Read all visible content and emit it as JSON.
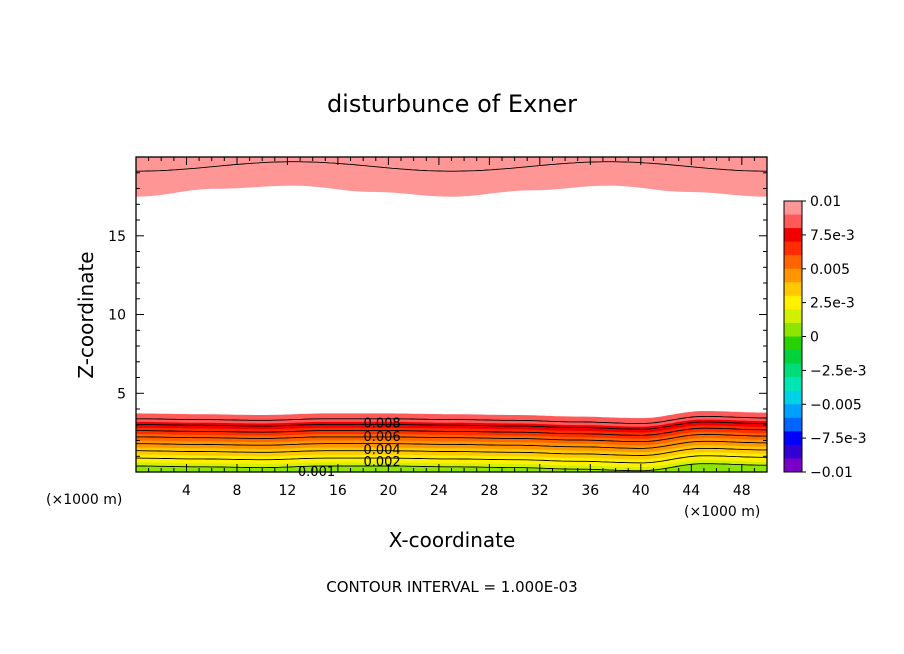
{
  "chart_data": {
    "type": "contour",
    "title": "disturbunce of Exner",
    "xlabel": "X-coordinate",
    "ylabel": "Z-coordinate",
    "x_unit_label": "(×1000 m)",
    "xlim": [
      0,
      50
    ],
    "ylim": [
      0,
      20
    ],
    "x_ticks": [
      {
        "value": 4,
        "label": "4"
      },
      {
        "value": 8,
        "label": "8"
      },
      {
        "value": 12,
        "label": "12"
      },
      {
        "value": 16,
        "label": "16"
      },
      {
        "value": 20,
        "label": "20"
      },
      {
        "value": 24,
        "label": "24"
      },
      {
        "value": 28,
        "label": "28"
      },
      {
        "value": 32,
        "label": "32"
      },
      {
        "value": 36,
        "label": "36"
      },
      {
        "value": 40,
        "label": "40"
      },
      {
        "value": 44,
        "label": "44"
      },
      {
        "value": 48,
        "label": "48"
      }
    ],
    "y_ticks": [
      {
        "value": 5,
        "label": "5"
      },
      {
        "value": 10,
        "label": "10"
      },
      {
        "value": 15,
        "label": "15"
      }
    ],
    "colorbar": {
      "min": -0.01,
      "max": 0.01,
      "colors": [
        "#7a00c8",
        "#3200d2",
        "#0000ff",
        "#0064ff",
        "#00a0ff",
        "#00d2e6",
        "#00e6b4",
        "#00dc78",
        "#00d23c",
        "#28d200",
        "#8ce600",
        "#d2f000",
        "#fff000",
        "#ffc800",
        "#ff9600",
        "#ff6400",
        "#ff2d00",
        "#f00000",
        "#ff5a5a",
        "#ff9696"
      ],
      "tick_labels": [
        {
          "value": 0.01,
          "label": "0.01"
        },
        {
          "value": 0.0075,
          "label": "7.5e-3"
        },
        {
          "value": 0.005,
          "label": "0.005"
        },
        {
          "value": 0.0025,
          "label": "2.5e-3"
        },
        {
          "value": 0,
          "label": "0"
        },
        {
          "value": -0.0025,
          "label": "−2.5e-3"
        },
        {
          "value": -0.005,
          "label": "−0.005"
        },
        {
          "value": -0.0075,
          "label": "−7.5e-3"
        },
        {
          "value": -0.01,
          "label": "−0.01"
        }
      ]
    },
    "contour_labels": [
      {
        "text": "0.008",
        "x": 19.5,
        "z": 3.15
      },
      {
        "text": "0.006",
        "x": 19.5,
        "z": 2.3
      },
      {
        "text": "0.004",
        "x": 19.5,
        "z": 1.45
      },
      {
        "text": "0.002",
        "x": 19.5,
        "z": 0.7
      },
      {
        "text": "0.001",
        "x": 14.3,
        "z": 0.05
      }
    ],
    "contour_interval_text": "CONTOUR INTERVAL = 1.000E-03",
    "bottom_layer": {
      "control_x": [
        0,
        5,
        10,
        15,
        20,
        25,
        30,
        35,
        40,
        45,
        50
      ],
      "offset_z": [
        0.0,
        -0.05,
        -0.1,
        0.0,
        0.0,
        -0.05,
        -0.1,
        -0.2,
        -0.3,
        0.15,
        0.05
      ],
      "levels": [
        {
          "value": 0.0005,
          "z": 0.12
        },
        {
          "value": 0.001,
          "z": 0.38
        },
        {
          "value": 0.0015,
          "z": 0.63
        },
        {
          "value": 0.002,
          "z": 0.88
        },
        {
          "value": 0.0025,
          "z": 1.12
        },
        {
          "value": 0.003,
          "z": 1.35
        },
        {
          "value": 0.0035,
          "z": 1.58
        },
        {
          "value": 0.004,
          "z": 1.8
        },
        {
          "value": 0.0045,
          "z": 2.02
        },
        {
          "value": 0.005,
          "z": 2.23
        },
        {
          "value": 0.0055,
          "z": 2.43
        },
        {
          "value": 0.006,
          "z": 2.63
        },
        {
          "value": 0.0065,
          "z": 2.83
        },
        {
          "value": 0.007,
          "z": 3.02
        },
        {
          "value": 0.0075,
          "z": 3.2
        },
        {
          "value": 0.008,
          "z": 3.38
        },
        {
          "value": 0.0085,
          "z": 3.55
        }
      ],
      "contour_values": [
        0.001,
        0.002,
        0.003,
        0.004,
        0.005,
        0.006,
        0.007,
        0.008
      ],
      "top_boundary_z": 3.7
    },
    "top_layer": {
      "control_x": [
        0,
        6.25,
        12.5,
        18.75,
        25,
        31.25,
        37.5,
        43.75,
        50
      ],
      "boundary_z": [
        17.5,
        18.0,
        18.2,
        17.8,
        17.5,
        17.9,
        18.2,
        17.8,
        17.5
      ],
      "band_edges": [
        {
          "value": 0.0095,
          "base_z": 18.4,
          "amp": 0.45
        },
        {
          "value": 0.01,
          "base_z": 19.1,
          "amp": 0.3
        },
        {
          "value": 0.0105,
          "base_z": 19.6,
          "amp": 0.18
        }
      ],
      "contour_values": [
        0.01
      ]
    }
  }
}
